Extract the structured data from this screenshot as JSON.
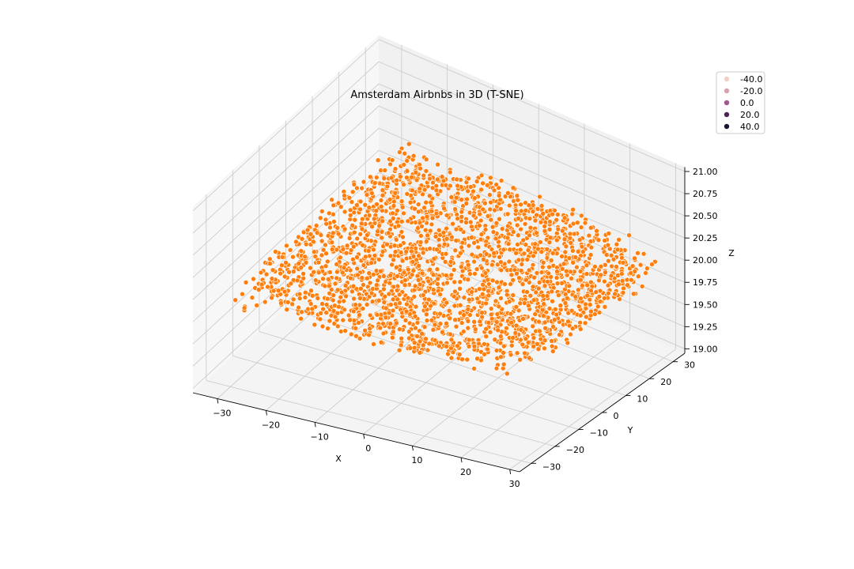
{
  "chart_data": {
    "type": "scatter",
    "projection": "3d",
    "title": "Amsterdam Airbnbs in 3D (T-SNE)",
    "xlabel": "X",
    "ylabel": "Y",
    "zlabel": "Z",
    "xlim": [
      -35,
      32
    ],
    "ylim": [
      -35,
      35
    ],
    "zlim": [
      18.95,
      21.05
    ],
    "x_ticks": [
      "−30",
      "−20",
      "−10",
      "0",
      "10",
      "20",
      "30"
    ],
    "y_ticks": [
      "−30",
      "−20",
      "−10",
      "0",
      "10",
      "20",
      "30"
    ],
    "z_ticks": [
      "19.00",
      "19.25",
      "19.50",
      "19.75",
      "20.00",
      "20.25",
      "20.50",
      "20.75",
      "21.00"
    ],
    "point_color": "#ff7f0e",
    "point_edge_color": "#ffffff",
    "z_level": 20.0,
    "point_cloud": {
      "x_range": [
        -29,
        30
      ],
      "y_range": [
        -33,
        33
      ],
      "approx_count": 6000
    },
    "grid": true,
    "legend": {
      "placement": "top-right",
      "entries": [
        {
          "label": "-40.0",
          "color": "#efd1c5"
        },
        {
          "label": "-20.0",
          "color": "#d8a1ae"
        },
        {
          "label": "0.0",
          "color": "#a0578f"
        },
        {
          "label": "20.0",
          "color": "#4e2355"
        },
        {
          "label": "40.0",
          "color": "#1c1333"
        }
      ]
    }
  }
}
